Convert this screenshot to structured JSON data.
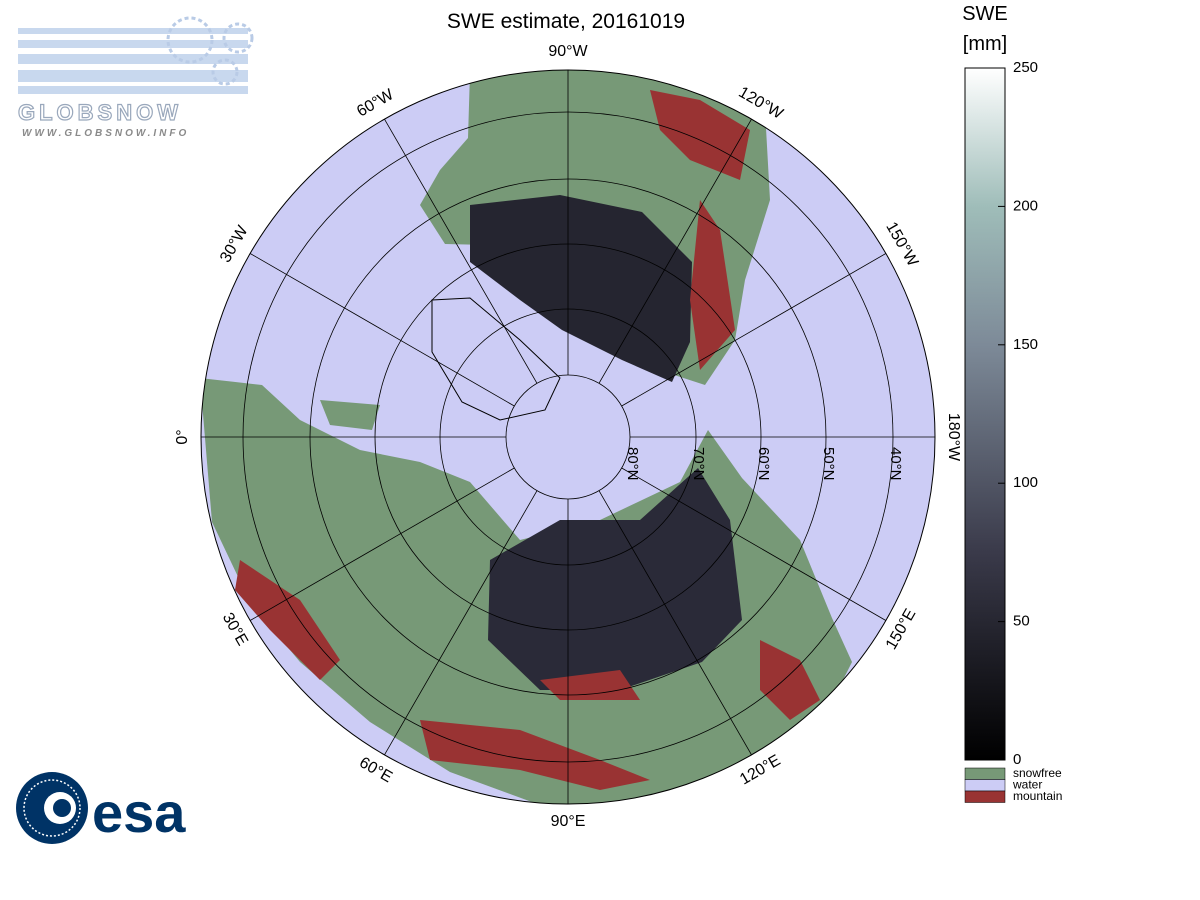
{
  "title": "SWE estimate, 20161019",
  "logos": {
    "globsnow": "GLOBSNOW",
    "url": "WWW.GLOBSNOW.INFO",
    "esa": "esa"
  },
  "map": {
    "meridians": [
      "90°W",
      "120°W",
      "150°W",
      "180°W",
      "150°E",
      "120°E",
      "90°E",
      "60°E",
      "30°E",
      "0°",
      "30°W",
      "60°W"
    ],
    "parallels": [
      "80°N",
      "70°N",
      "60°N",
      "50°N",
      "40°N"
    ]
  },
  "colorbar": {
    "label": [
      "SWE",
      "[mm]"
    ],
    "lim": [
      0,
      250
    ],
    "ticks": [
      0,
      50,
      100,
      150,
      200,
      250
    ],
    "classes": [
      {
        "name": "snowfree",
        "color": "#779977"
      },
      {
        "name": "water",
        "color": "#ccccf5"
      },
      {
        "name": "mountain",
        "color": "#993333"
      }
    ]
  }
}
